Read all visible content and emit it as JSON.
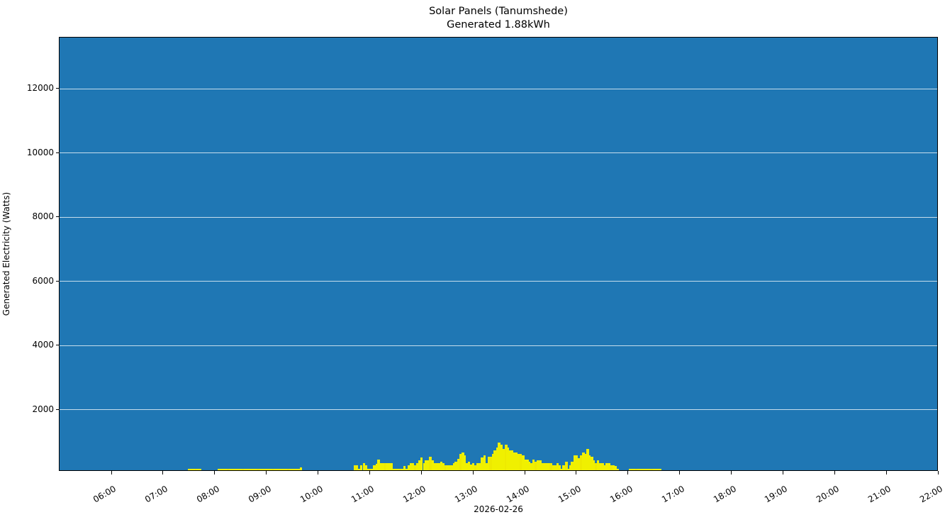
{
  "chart_data": {
    "type": "bar",
    "title": "Solar Panels (Tanumshede)",
    "subtitle": "Generated 1.88kWh",
    "xlabel": "2026-02-26",
    "ylabel": "Generated Electricity (Watts)",
    "ylim": [
      75,
      13600
    ],
    "xlim": [
      "04:59",
      "22:00"
    ],
    "grid": {
      "y": true,
      "x": false,
      "color": "#ffffff"
    },
    "legend": null,
    "colors": {
      "background": "#1f77b4",
      "bars": "#f0f000"
    },
    "yticks": [
      2000,
      4000,
      6000,
      8000,
      10000,
      12000
    ],
    "xticks": [
      "06:00",
      "07:00",
      "08:00",
      "09:00",
      "10:00",
      "11:00",
      "12:00",
      "13:00",
      "14:00",
      "15:00",
      "16:00",
      "17:00",
      "18:00",
      "19:00",
      "20:00",
      "21:00",
      "22:00"
    ],
    "bin_minutes": 2.5,
    "series": [
      {
        "name": "Generated",
        "points": [
          [
            "07:28",
            80
          ],
          [
            "07:31",
            80
          ],
          [
            "07:33",
            80
          ],
          [
            "07:36",
            80
          ],
          [
            "07:38",
            80
          ],
          [
            "07:41",
            80
          ],
          [
            "08:03",
            80
          ],
          [
            "08:06",
            80
          ],
          [
            "08:08",
            80
          ],
          [
            "08:11",
            110
          ],
          [
            "08:13",
            110
          ],
          [
            "08:16",
            110
          ],
          [
            "08:18",
            110
          ],
          [
            "08:21",
            110
          ],
          [
            "08:23",
            110
          ],
          [
            "08:26",
            110
          ],
          [
            "08:28",
            110
          ],
          [
            "08:31",
            110
          ],
          [
            "08:33",
            110
          ],
          [
            "08:36",
            110
          ],
          [
            "08:38",
            110
          ],
          [
            "08:41",
            110
          ],
          [
            "08:43",
            110
          ],
          [
            "08:46",
            110
          ],
          [
            "08:48",
            110
          ],
          [
            "08:51",
            110
          ],
          [
            "08:53",
            110
          ],
          [
            "08:56",
            110
          ],
          [
            "08:58",
            110
          ],
          [
            "09:01",
            110
          ],
          [
            "09:03",
            110
          ],
          [
            "09:06",
            110
          ],
          [
            "09:08",
            110
          ],
          [
            "09:11",
            110
          ],
          [
            "09:13",
            110
          ],
          [
            "09:16",
            110
          ],
          [
            "09:18",
            110
          ],
          [
            "09:21",
            110
          ],
          [
            "09:23",
            110
          ],
          [
            "09:26",
            110
          ],
          [
            "09:28",
            110
          ],
          [
            "09:31",
            110
          ],
          [
            "09:33",
            110
          ],
          [
            "09:36",
            110
          ],
          [
            "09:38",
            170
          ],
          [
            "10:41",
            230
          ],
          [
            "10:43",
            230
          ],
          [
            "10:46",
            130
          ],
          [
            "10:48",
            230
          ],
          [
            "10:51",
            300
          ],
          [
            "10:53",
            230
          ],
          [
            "10:56",
            130
          ],
          [
            "10:58",
            130
          ],
          [
            "11:01",
            130
          ],
          [
            "11:03",
            230
          ],
          [
            "11:06",
            280
          ],
          [
            "11:08",
            400
          ],
          [
            "11:11",
            300
          ],
          [
            "11:13",
            300
          ],
          [
            "11:16",
            300
          ],
          [
            "11:18",
            300
          ],
          [
            "11:21",
            300
          ],
          [
            "11:23",
            300
          ],
          [
            "11:26",
            130
          ],
          [
            "11:28",
            130
          ],
          [
            "11:31",
            130
          ],
          [
            "11:33",
            130
          ],
          [
            "11:36",
            130
          ],
          [
            "11:38",
            200
          ],
          [
            "11:41",
            130
          ],
          [
            "11:43",
            230
          ],
          [
            "11:46",
            300
          ],
          [
            "11:48",
            300
          ],
          [
            "11:51",
            230
          ],
          [
            "11:53",
            300
          ],
          [
            "11:56",
            380
          ],
          [
            "11:58",
            480
          ],
          [
            "12:01",
            300
          ],
          [
            "12:03",
            380
          ],
          [
            "12:06",
            380
          ],
          [
            "12:08",
            500
          ],
          [
            "12:11",
            380
          ],
          [
            "12:13",
            300
          ],
          [
            "12:16",
            300
          ],
          [
            "12:18",
            300
          ],
          [
            "12:21",
            330
          ],
          [
            "12:23",
            300
          ],
          [
            "12:26",
            230
          ],
          [
            "12:28",
            230
          ],
          [
            "12:31",
            230
          ],
          [
            "12:33",
            230
          ],
          [
            "12:36",
            300
          ],
          [
            "12:38",
            330
          ],
          [
            "12:41",
            420
          ],
          [
            "12:43",
            580
          ],
          [
            "12:46",
            630
          ],
          [
            "12:48",
            530
          ],
          [
            "12:51",
            300
          ],
          [
            "12:53",
            330
          ],
          [
            "12:56",
            250
          ],
          [
            "12:58",
            300
          ],
          [
            "13:01",
            230
          ],
          [
            "13:03",
            300
          ],
          [
            "13:06",
            300
          ],
          [
            "13:08",
            480
          ],
          [
            "13:11",
            530
          ],
          [
            "13:13",
            300
          ],
          [
            "13:16",
            500
          ],
          [
            "13:18",
            500
          ],
          [
            "13:21",
            580
          ],
          [
            "13:23",
            700
          ],
          [
            "13:26",
            780
          ],
          [
            "13:28",
            930
          ],
          [
            "13:31",
            880
          ],
          [
            "13:33",
            730
          ],
          [
            "13:36",
            880
          ],
          [
            "13:38",
            780
          ],
          [
            "13:41",
            700
          ],
          [
            "13:43",
            700
          ],
          [
            "13:46",
            630
          ],
          [
            "13:48",
            630
          ],
          [
            "13:51",
            580
          ],
          [
            "13:53",
            580
          ],
          [
            "13:56",
            530
          ],
          [
            "13:58",
            400
          ],
          [
            "14:01",
            400
          ],
          [
            "14:03",
            330
          ],
          [
            "14:06",
            300
          ],
          [
            "14:08",
            400
          ],
          [
            "14:11",
            330
          ],
          [
            "14:13",
            380
          ],
          [
            "14:16",
            380
          ],
          [
            "14:18",
            300
          ],
          [
            "14:21",
            300
          ],
          [
            "14:23",
            300
          ],
          [
            "14:26",
            300
          ],
          [
            "14:28",
            300
          ],
          [
            "14:31",
            230
          ],
          [
            "14:33",
            230
          ],
          [
            "14:36",
            300
          ],
          [
            "14:38",
            230
          ],
          [
            "14:41",
            130
          ],
          [
            "14:43",
            230
          ],
          [
            "14:46",
            330
          ],
          [
            "14:48",
            130
          ],
          [
            "14:51",
            230
          ],
          [
            "14:53",
            330
          ],
          [
            "14:56",
            530
          ],
          [
            "14:58",
            530
          ],
          [
            "15:01",
            450
          ],
          [
            "15:03",
            530
          ],
          [
            "15:06",
            630
          ],
          [
            "15:08",
            580
          ],
          [
            "15:11",
            730
          ],
          [
            "15:13",
            530
          ],
          [
            "15:16",
            500
          ],
          [
            "15:18",
            380
          ],
          [
            "15:21",
            300
          ],
          [
            "15:23",
            380
          ],
          [
            "15:26",
            300
          ],
          [
            "15:28",
            300
          ],
          [
            "15:31",
            230
          ],
          [
            "15:33",
            300
          ],
          [
            "15:36",
            300
          ],
          [
            "15:38",
            230
          ],
          [
            "15:41",
            230
          ],
          [
            "15:43",
            200
          ],
          [
            "15:46",
            130
          ],
          [
            "16:00",
            110
          ],
          [
            "16:03",
            110
          ],
          [
            "16:05",
            110
          ],
          [
            "16:08",
            110
          ],
          [
            "16:10",
            110
          ],
          [
            "16:13",
            110
          ],
          [
            "16:15",
            110
          ],
          [
            "16:18",
            110
          ],
          [
            "16:20",
            110
          ],
          [
            "16:23",
            110
          ],
          [
            "16:25",
            110
          ],
          [
            "16:28",
            110
          ],
          [
            "16:30",
            110
          ],
          [
            "16:33",
            110
          ],
          [
            "16:35",
            110
          ]
        ]
      }
    ]
  }
}
